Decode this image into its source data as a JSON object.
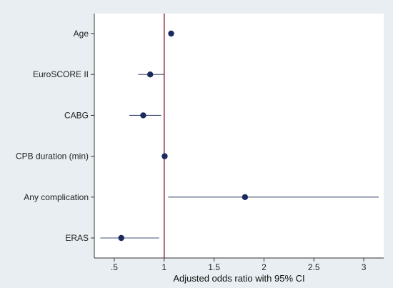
{
  "chart_data": {
    "type": "scatter",
    "subtype": "forest-plot",
    "title": "",
    "xlabel": "Adjusted odds ratio with 95% CI",
    "ylabel": "",
    "xlim": [
      0.3,
      3.2
    ],
    "xticks": [
      {
        "value": 0.5,
        "label": ".5"
      },
      {
        "value": 1,
        "label": "1"
      },
      {
        "value": 1.5,
        "label": "1.5"
      },
      {
        "value": 2,
        "label": "2"
      },
      {
        "value": 2.5,
        "label": "2.5"
      },
      {
        "value": 3,
        "label": "3"
      }
    ],
    "reference_line": 1,
    "grid": false,
    "legend": "none",
    "rows": [
      {
        "label": "Age",
        "estimate": 1.07,
        "ci_low": 1.05,
        "ci_high": 1.09
      },
      {
        "label": "EuroSCORE II",
        "estimate": 0.86,
        "ci_low": 0.74,
        "ci_high": 1.0
      },
      {
        "label": "CABG",
        "estimate": 0.79,
        "ci_low": 0.65,
        "ci_high": 0.97
      },
      {
        "label": "CPB duration (min)",
        "estimate": 1.005,
        "ci_low": 0.995,
        "ci_high": 1.015
      },
      {
        "label": "Any complication",
        "estimate": 1.81,
        "ci_low": 1.04,
        "ci_high": 3.15
      },
      {
        "label": "ERAS",
        "estimate": 0.57,
        "ci_low": 0.36,
        "ci_high": 0.95
      }
    ],
    "colors": {
      "background": "#e8eef1",
      "plot_background": "#ffffff",
      "marker": "#1a2a5e",
      "ci_line": "#3f4f74",
      "reference_line": "#8b1a2b",
      "axis": "#333333"
    }
  }
}
